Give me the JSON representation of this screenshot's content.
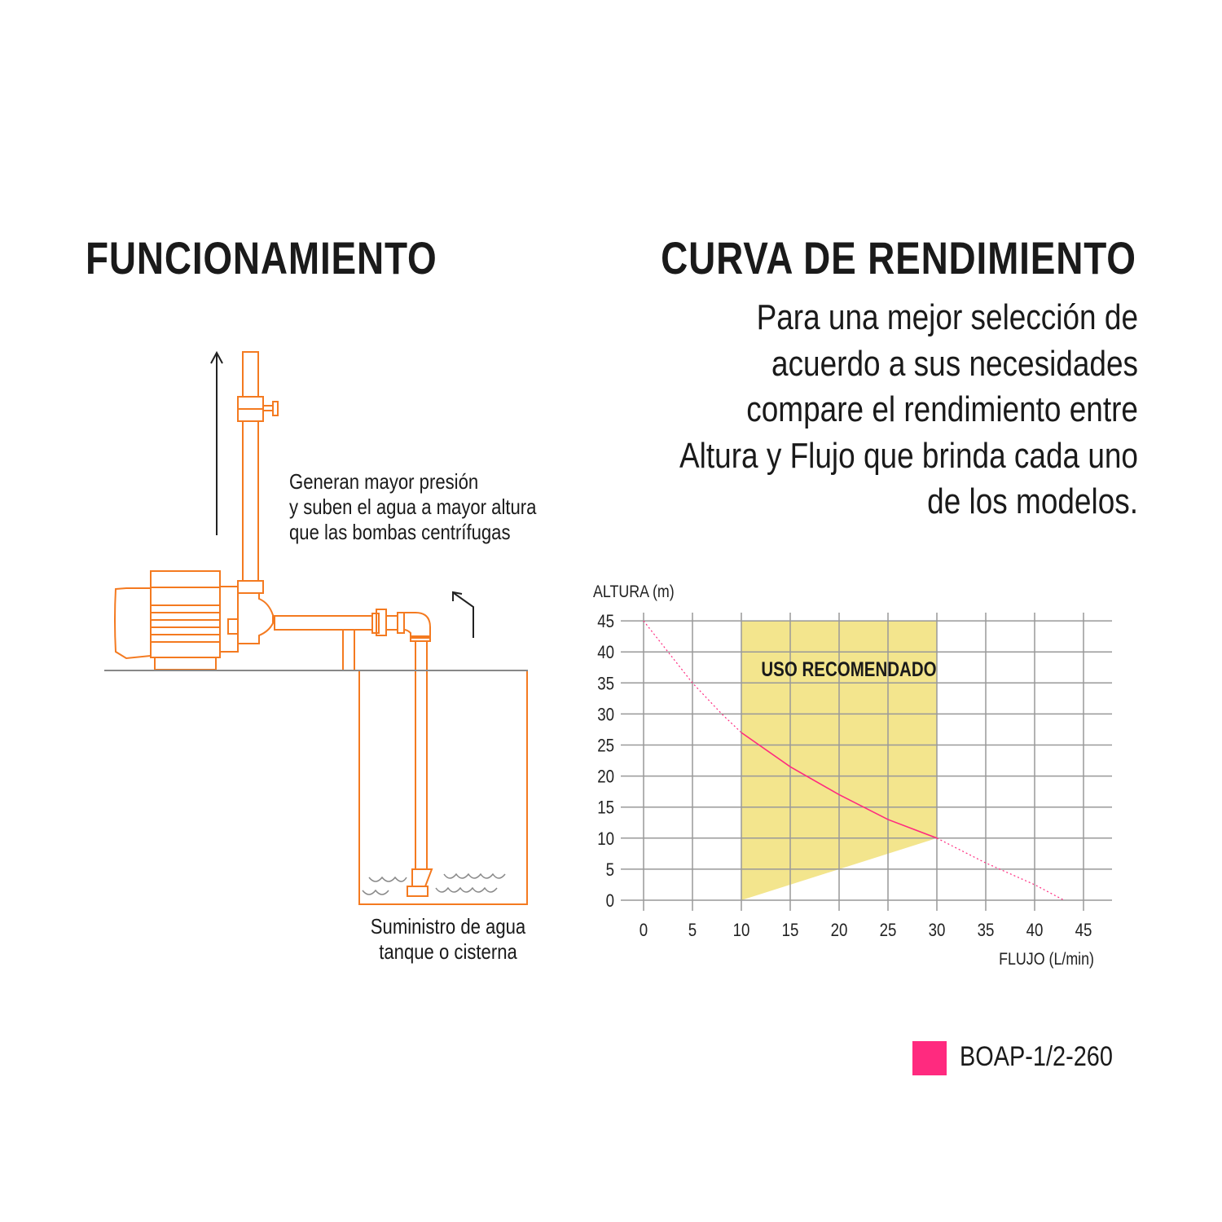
{
  "left": {
    "title": "FUNCIONAMIENTO",
    "note_lines": [
      "Generan mayor presión",
      "y suben el agua a mayor altura",
      "que las bombas centrífugas"
    ],
    "supply_lines": [
      "Suministro de agua",
      "tanque o cisterna"
    ],
    "diagram_color": "#f47a20"
  },
  "right": {
    "title": "CURVA DE RENDIMIENTO",
    "subtitle_lines": [
      "Para una mejor selección de",
      "acuerdo a sus necesidades",
      "compare el rendimiento entre",
      "Altura y Flujo que brinda cada uno",
      "de los modelos."
    ]
  },
  "chart_data": {
    "type": "line",
    "xlabel": "FLUJO (L/min)",
    "ylabel": "ALTURA (m)",
    "xlim": [
      0,
      45
    ],
    "ylim": [
      0,
      45
    ],
    "x_ticks": [
      0,
      5,
      10,
      15,
      20,
      25,
      30,
      35,
      40,
      45
    ],
    "y_ticks": [
      0,
      5,
      10,
      15,
      20,
      25,
      30,
      35,
      40,
      45
    ],
    "grid": true,
    "annotation": "USO RECOMENDADO",
    "recommended_region": {
      "polygon": [
        [
          10,
          45
        ],
        [
          30,
          45
        ],
        [
          30,
          10
        ],
        [
          10,
          0
        ]
      ],
      "color": "#f3e58d"
    },
    "series": [
      {
        "name": "BOAP-1/2-260",
        "color": "#ff2a7f",
        "x": [
          0,
          5,
          8,
          10,
          15,
          20,
          25,
          30,
          35,
          40,
          43
        ],
        "y": [
          45,
          35,
          30,
          27,
          21.5,
          17,
          13,
          10,
          6,
          2.5,
          0
        ],
        "solid_range": [
          10,
          30
        ]
      }
    ],
    "legend": "bottom-right"
  }
}
